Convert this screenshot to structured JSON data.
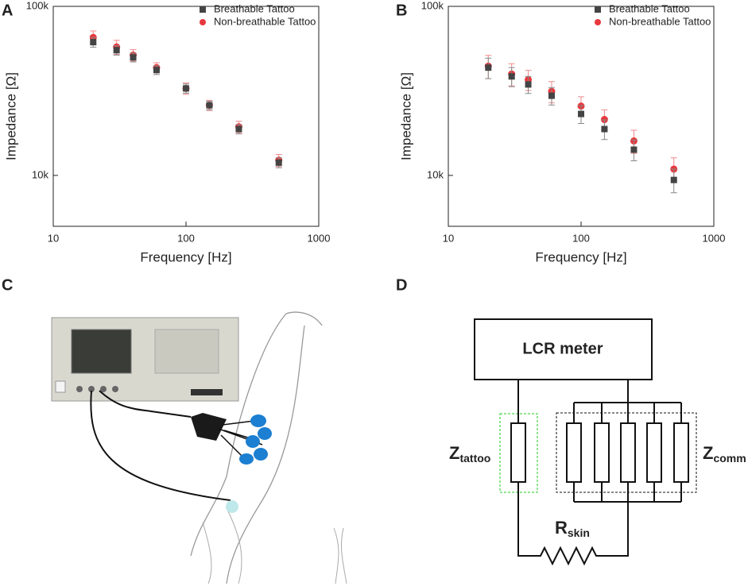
{
  "panels": [
    "A",
    "B",
    "C",
    "D"
  ],
  "chart_data": [
    {
      "type": "scatter",
      "xlabel": "Frequency [Hz]",
      "ylabel": "Impedance [Ω]",
      "x": [
        20,
        30,
        40,
        60,
        100,
        150,
        250,
        500
      ],
      "xlog": true,
      "ylog": true,
      "xlim": [
        10,
        1000
      ],
      "ylim": [
        5000,
        100000
      ],
      "xticks": [
        10,
        100,
        1000
      ],
      "yticks": [
        {
          "value": 10000,
          "label": "10k"
        },
        {
          "value": 100000,
          "label": "100k"
        }
      ],
      "legend": "upper right",
      "series": [
        {
          "name": "Breathable Tattoo",
          "color": "#444444",
          "marker": "square",
          "values": [
            61400,
            55000,
            49900,
            42000,
            32700,
            26000,
            18800,
            11900
          ],
          "errors": [
            4000,
            3500,
            3000,
            2500,
            2000,
            1500,
            1200,
            800
          ]
        },
        {
          "name": "Non-breathable Tattoo",
          "color": "#e8383d",
          "marker": "circle",
          "values": [
            65500,
            57500,
            51500,
            43400,
            32700,
            26000,
            19400,
            12300
          ],
          "errors": [
            6000,
            5500,
            4000,
            3000,
            2500,
            1800,
            1500,
            1000
          ]
        }
      ]
    },
    {
      "type": "scatter",
      "xlabel": "Frequency [Hz]",
      "ylabel": "Impedance [Ω]",
      "x": [
        20,
        30,
        40,
        60,
        100,
        150,
        250,
        500
      ],
      "xlog": true,
      "ylog": true,
      "xlim": [
        10,
        1000
      ],
      "ylim": [
        5000,
        100000
      ],
      "xticks": [
        10,
        100,
        1000
      ],
      "yticks": [
        {
          "value": 10000,
          "label": "10k"
        },
        {
          "value": 100000,
          "label": "100k"
        }
      ],
      "legend": "upper right",
      "series": [
        {
          "name": "Breathable Tattoo",
          "color": "#444444",
          "marker": "square",
          "values": [
            43400,
            38500,
            34500,
            29600,
            23100,
            18800,
            14200,
            9400
          ],
          "errors": [
            6000,
            5000,
            4000,
            3500,
            2800,
            2500,
            2000,
            1500
          ]
        },
        {
          "name": "Non-breathable Tattoo",
          "color": "#e8383d",
          "marker": "circle",
          "values": [
            44300,
            39800,
            36800,
            31400,
            25700,
            21400,
            16000,
            10900
          ],
          "errors": [
            7000,
            6000,
            5000,
            4500,
            3500,
            3000,
            2500,
            1800
          ]
        }
      ]
    }
  ],
  "circuit": {
    "meter": "LCR meter",
    "tattoo": {
      "symbol": "Z",
      "subscript": "tattoo"
    },
    "comm": {
      "symbol": "Z",
      "subscript": "comm"
    },
    "skin": {
      "symbol": "R",
      "subscript": "skin"
    }
  }
}
